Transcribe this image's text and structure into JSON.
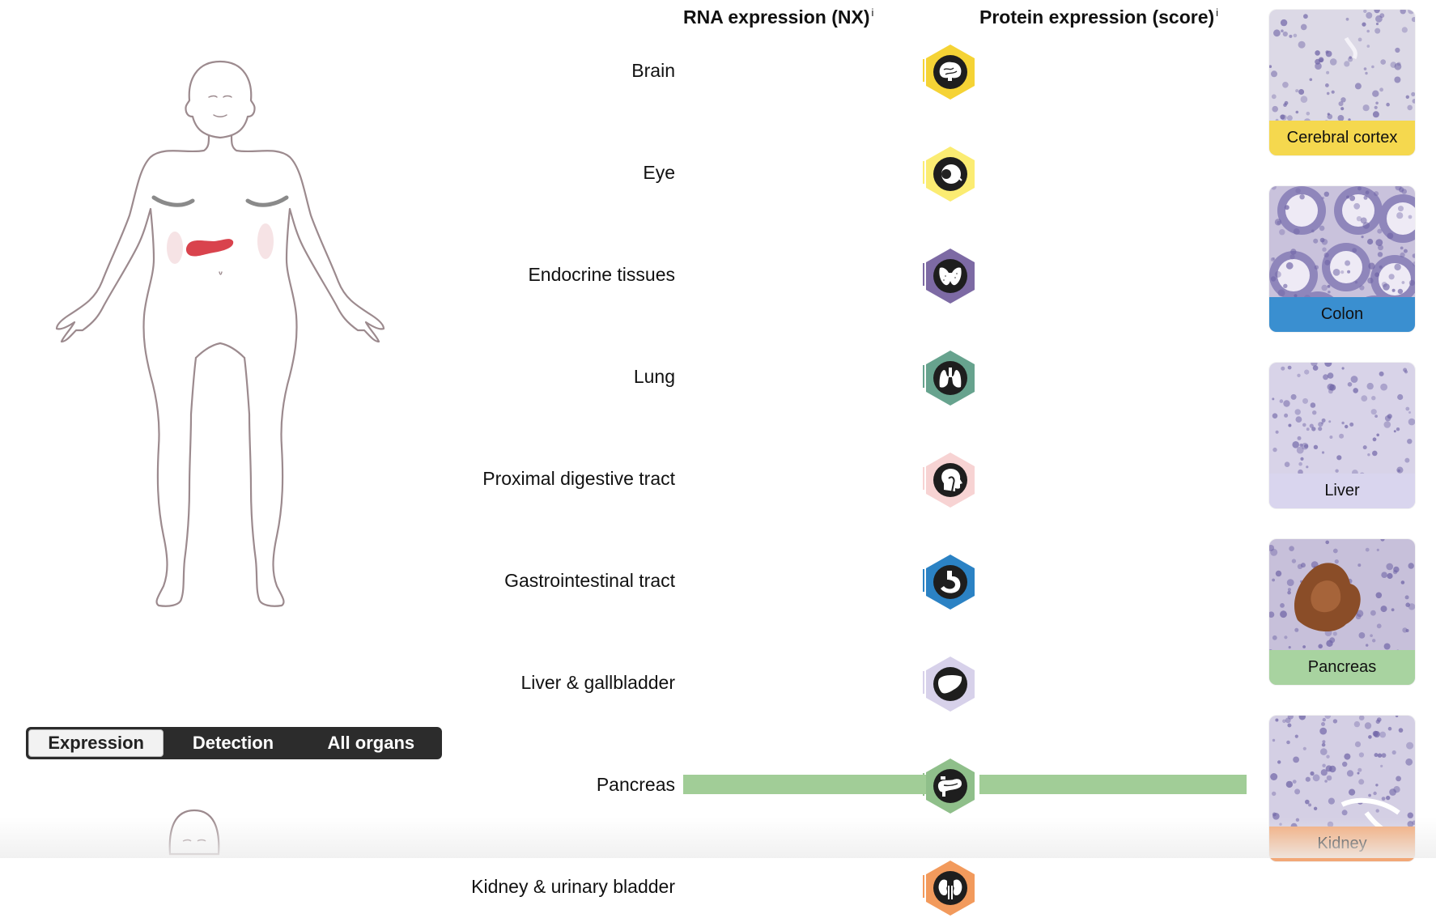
{
  "headers": {
    "rna": "RNA expression (NX)",
    "protein": "Protein expression (score)",
    "info_marker": "i"
  },
  "view_toggle": {
    "options": [
      "Expression",
      "Detection",
      "All organs"
    ],
    "selected": "Expression"
  },
  "tissues": [
    {
      "label": "Brain",
      "icon": "brain-icon",
      "color": "#f5d335"
    },
    {
      "label": "Eye",
      "icon": "eye-icon",
      "color": "#fbec72"
    },
    {
      "label": "Endocrine tissues",
      "icon": "thyroid-icon",
      "color": "#7d6aa4"
    },
    {
      "label": "Lung",
      "icon": "lungs-icon",
      "color": "#67a38e"
    },
    {
      "label": "Proximal digestive tract",
      "icon": "head-icon",
      "color": "#f7d3d3"
    },
    {
      "label": "Gastrointestinal tract",
      "icon": "stomach-icon",
      "color": "#2b82c4"
    },
    {
      "label": "Liver & gallbladder",
      "icon": "liver-icon",
      "color": "#d7d1ea"
    },
    {
      "label": "Pancreas",
      "icon": "pancreas-icon",
      "color": "#8fbf8a",
      "rna_level": 1.0,
      "protein_level": 1.0
    },
    {
      "label": "Kidney & urinary bladder",
      "icon": "kidney-icon",
      "color": "#f29a5c"
    }
  ],
  "bars": {
    "color": "#a1cd97"
  },
  "tissue_images": [
    {
      "label": "Cerebral cortex",
      "color": "#f5d84e"
    },
    {
      "label": "Colon",
      "color": "#3a8fd0"
    },
    {
      "label": "Liver",
      "color": "#d9d5ee"
    },
    {
      "label": "Pancreas",
      "color": "#a8d3a0"
    },
    {
      "label": "Kidney",
      "color": "#f2a877"
    }
  ],
  "body_highlight": {
    "organ": "pancreas",
    "color": "#d9434d"
  }
}
